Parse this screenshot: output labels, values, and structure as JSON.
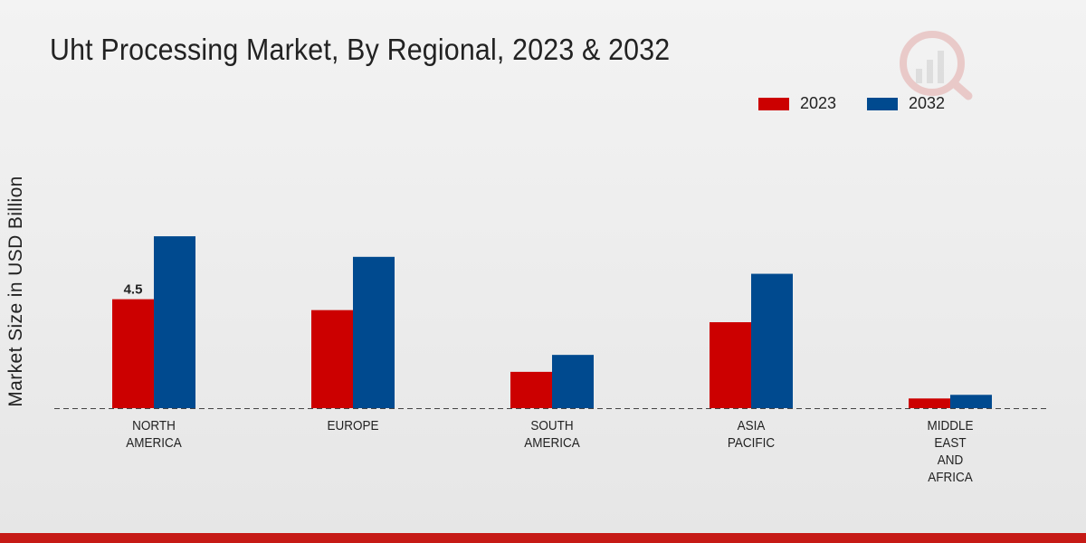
{
  "colors": {
    "series_2023": "#cc0000",
    "series_2032": "#004a8f",
    "footer_bar": "#c61a16"
  },
  "chart_data": {
    "type": "bar",
    "title": "Uht Processing Market, By Regional, 2023 & 2032",
    "ylabel": "Market Size in USD Billion",
    "xlabel": "",
    "categories": [
      "NORTH\nAMERICA",
      "EUROPE",
      "SOUTH\nAMERICA",
      "ASIA\nPACIFIC",
      "MIDDLE\nEAST\nAND\nAFRICA"
    ],
    "series": [
      {
        "name": "2023",
        "values": [
          4.5,
          4.05,
          1.5,
          3.55,
          0.4
        ]
      },
      {
        "name": "2032",
        "values": [
          7.1,
          6.25,
          2.2,
          5.55,
          0.55
        ]
      }
    ],
    "data_labels": [
      {
        "series": "2023",
        "category_index": 0,
        "text": "4.5"
      }
    ],
    "ylim": [
      0,
      12
    ],
    "legend_position": "top-right",
    "grid": false
  },
  "watermark_icon": "market-research-logo-icon"
}
